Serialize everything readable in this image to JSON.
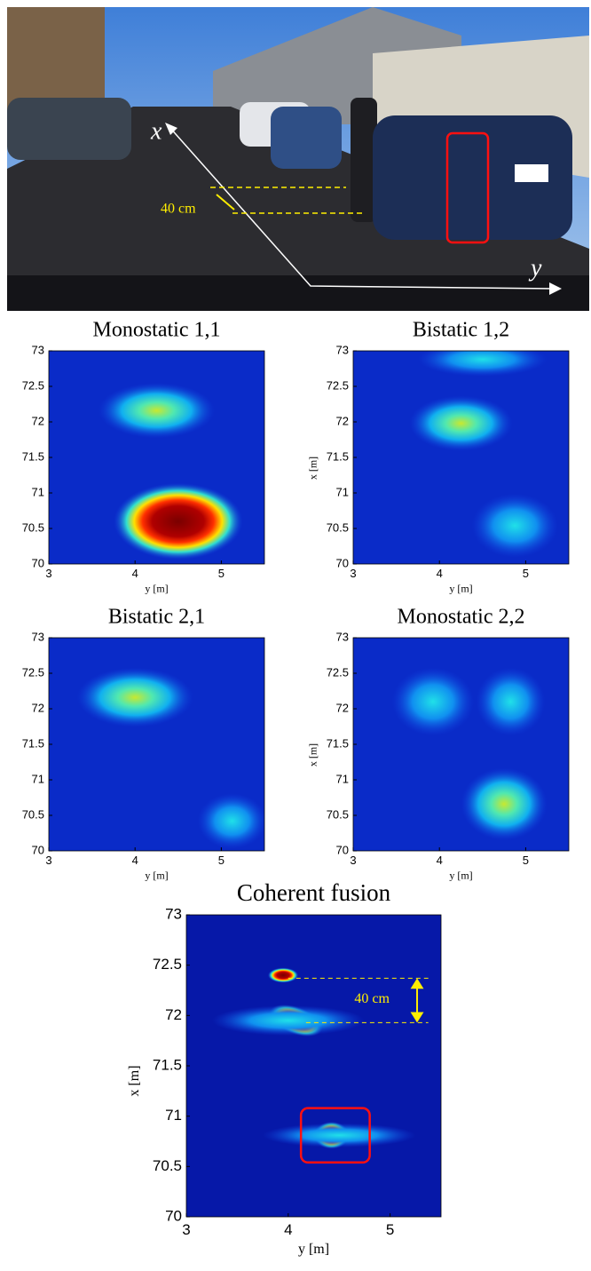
{
  "photo": {
    "x_axis_label": "x",
    "y_axis_label": "y",
    "annotation": "40 cm"
  },
  "chart_data": [
    {
      "type": "heatmap",
      "title": "Monostatic 1,1",
      "xlabel": "y [m]",
      "xlim": [
        3,
        5.5
      ],
      "ylim": [
        70,
        73
      ],
      "xticks": [
        3,
        4,
        5
      ],
      "yticks": [
        70,
        70.5,
        71,
        71.5,
        72,
        72.5,
        73
      ]
    },
    {
      "type": "heatmap",
      "title": "Bistatic 1,2",
      "xlabel": "y [m]",
      "ylabel": "x [m]",
      "xlim": [
        3,
        5.5
      ],
      "ylim": [
        70,
        73
      ],
      "xticks": [
        3,
        4,
        5
      ],
      "yticks": [
        70,
        70.5,
        71,
        71.5,
        72,
        72.5,
        73
      ]
    },
    {
      "type": "heatmap",
      "title": "Bistatic 2,1",
      "xlabel": "y [m]",
      "xlim": [
        3,
        5.5
      ],
      "ylim": [
        70,
        73
      ],
      "xticks": [
        3,
        4,
        5
      ],
      "yticks": [
        70,
        70.5,
        71,
        71.5,
        72,
        72.5,
        73
      ]
    },
    {
      "type": "heatmap",
      "title": "Monostatic 2,2",
      "xlabel": "y [m]",
      "ylabel": "x [m]",
      "xlim": [
        3,
        5.5
      ],
      "ylim": [
        70,
        73
      ],
      "xticks": [
        3,
        4,
        5
      ],
      "yticks": [
        70,
        70.5,
        71,
        71.5,
        72,
        72.5,
        73
      ]
    },
    {
      "type": "heatmap",
      "title": "Coherent fusion",
      "xlabel": "y [m]",
      "ylabel": "x [m]",
      "annotation": "40 cm",
      "xlim": [
        3,
        5.5
      ],
      "ylim": [
        70,
        73
      ],
      "xticks": [
        3,
        4,
        5
      ],
      "yticks": [
        70,
        70.5,
        71,
        71.5,
        72,
        72.5,
        73
      ]
    }
  ]
}
